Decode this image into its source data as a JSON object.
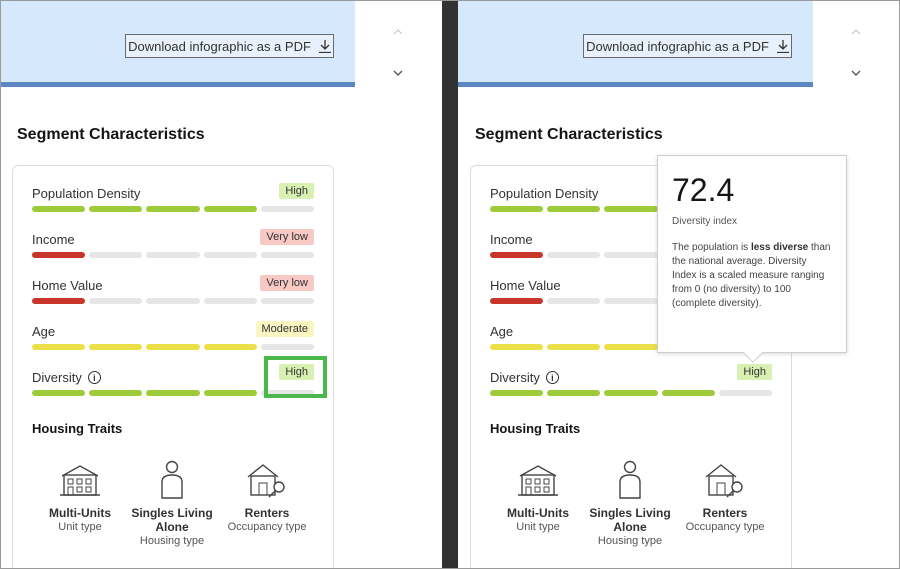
{
  "download_label": "Download infographic as a PDF",
  "section_title": "Segment Characteristics",
  "metrics": [
    {
      "label": "Population Density",
      "badge": "High",
      "level": 4,
      "color": "green"
    },
    {
      "label": "Income",
      "badge": "Very low",
      "level": 1,
      "color": "red"
    },
    {
      "label": "Home Value",
      "badge": "Very low",
      "level": 1,
      "color": "red"
    },
    {
      "label": "Age",
      "badge": "Moderate",
      "level": 4,
      "color": "yellow"
    },
    {
      "label": "Diversity",
      "badge": "High",
      "level": 4,
      "color": "green"
    }
  ],
  "housing_title": "Housing Traits",
  "traits": [
    {
      "name": "Multi-Units",
      "sub": "Unit type",
      "icon": "multi-unit-building-icon"
    },
    {
      "name": "Singles Living Alone",
      "sub": "Housing type",
      "icon": "person-icon"
    },
    {
      "name": "Renters",
      "sub": "Occupancy type",
      "icon": "house-key-icon"
    }
  ],
  "tooltip": {
    "value": "72.4",
    "label": "Diversity index",
    "desc_pre": "The population is ",
    "desc_bold": "less diverse",
    "desc_post": " than the national average. Diversity Index is a scaled measure ranging from 0 (no diversity) to 100 (complete diversity)."
  },
  "colors": {
    "header_bg": "#d6e8fb",
    "green": "#9dcb3a",
    "red": "#c8352a",
    "yellow": "#ece04a",
    "highlight": "#4bb84b",
    "dark": "#323232"
  }
}
